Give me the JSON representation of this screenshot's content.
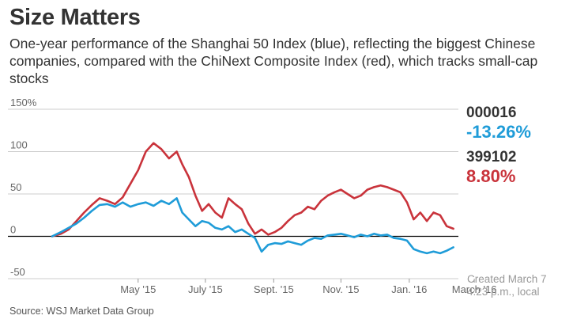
{
  "header": {
    "title": "Size Matters",
    "subtitle": "One-year performance of the Shanghai 50 Index (blue), reflecting the biggest Chinese companies, compared with the ChiNext Composite Index (red), which tracks small-cap stocks"
  },
  "legend": {
    "blue_code": "000016",
    "blue_value": "-13.26%",
    "red_code": "399102",
    "red_value": "8.80%"
  },
  "created": {
    "line1": "Created March 7",
    "line2": "4:23 p.m., local"
  },
  "source": "Source: WSJ Market Data Group",
  "colors": {
    "blue": "#1f9cd8",
    "red": "#c9333b",
    "grid": "#cccccc",
    "zero": "#000000",
    "text": "#333333"
  },
  "chart_data": {
    "type": "line",
    "title": "Size Matters",
    "xlabel": "",
    "ylabel": "",
    "ylim": [
      -50,
      150
    ],
    "xlim": [
      0,
      365
    ],
    "yticks": [
      {
        "value": 150,
        "label": "150%"
      },
      {
        "value": 100,
        "label": "100"
      },
      {
        "value": 50,
        "label": "50"
      },
      {
        "value": 0,
        "label": "0"
      },
      {
        "value": -50,
        "label": "-50"
      }
    ],
    "xticks": [
      {
        "day": 78,
        "label": "May '15"
      },
      {
        "day": 139,
        "label": "July '15"
      },
      {
        "day": 201,
        "label": "Sept. '15"
      },
      {
        "day": 262,
        "label": "Nov. '15"
      },
      {
        "day": 324,
        "label": "Jan. '16"
      },
      {
        "day": 383,
        "label": "March '16"
      }
    ],
    "series": [
      {
        "name": "399102",
        "color": "red",
        "x": [
          0,
          8,
          15,
          22,
          29,
          36,
          43,
          50,
          57,
          64,
          71,
          78,
          85,
          92,
          99,
          106,
          113,
          118,
          124,
          130,
          136,
          142,
          148,
          154,
          160,
          166,
          172,
          178,
          184,
          190,
          196,
          202,
          208,
          214,
          220,
          226,
          232,
          238,
          244,
          250,
          256,
          262,
          268,
          274,
          280,
          286,
          292,
          298,
          304,
          310,
          316,
          322,
          328,
          334,
          340,
          346,
          352,
          358,
          364
        ],
        "values": [
          0,
          3,
          8,
          18,
          28,
          37,
          45,
          42,
          38,
          46,
          62,
          78,
          100,
          110,
          103,
          92,
          100,
          85,
          70,
          48,
          30,
          38,
          28,
          22,
          45,
          38,
          32,
          15,
          3,
          8,
          2,
          5,
          10,
          18,
          25,
          28,
          35,
          32,
          42,
          48,
          52,
          55,
          50,
          45,
          48,
          55,
          58,
          60,
          58,
          55,
          52,
          40,
          20,
          28,
          18,
          28,
          25,
          12,
          9
        ]
      },
      {
        "name": "000016",
        "color": "blue",
        "x": [
          0,
          8,
          15,
          22,
          29,
          36,
          43,
          50,
          57,
          64,
          71,
          78,
          85,
          92,
          99,
          106,
          113,
          118,
          124,
          130,
          136,
          142,
          148,
          154,
          160,
          166,
          172,
          178,
          184,
          190,
          196,
          202,
          208,
          214,
          220,
          226,
          232,
          238,
          244,
          250,
          256,
          262,
          268,
          274,
          280,
          286,
          292,
          298,
          304,
          310,
          316,
          322,
          328,
          334,
          340,
          346,
          352,
          358,
          364
        ],
        "values": [
          0,
          5,
          10,
          15,
          22,
          30,
          37,
          38,
          35,
          40,
          35,
          38,
          40,
          36,
          42,
          38,
          45,
          28,
          20,
          12,
          18,
          16,
          10,
          8,
          12,
          5,
          8,
          3,
          -2,
          -18,
          -10,
          -8,
          -9,
          -6,
          -8,
          -10,
          -5,
          -2,
          -3,
          1,
          2,
          3,
          1,
          -1,
          2,
          0,
          3,
          1,
          2,
          -2,
          -3,
          -5,
          -15,
          -18,
          -20,
          -18,
          -20,
          -17,
          -13
        ]
      }
    ]
  }
}
